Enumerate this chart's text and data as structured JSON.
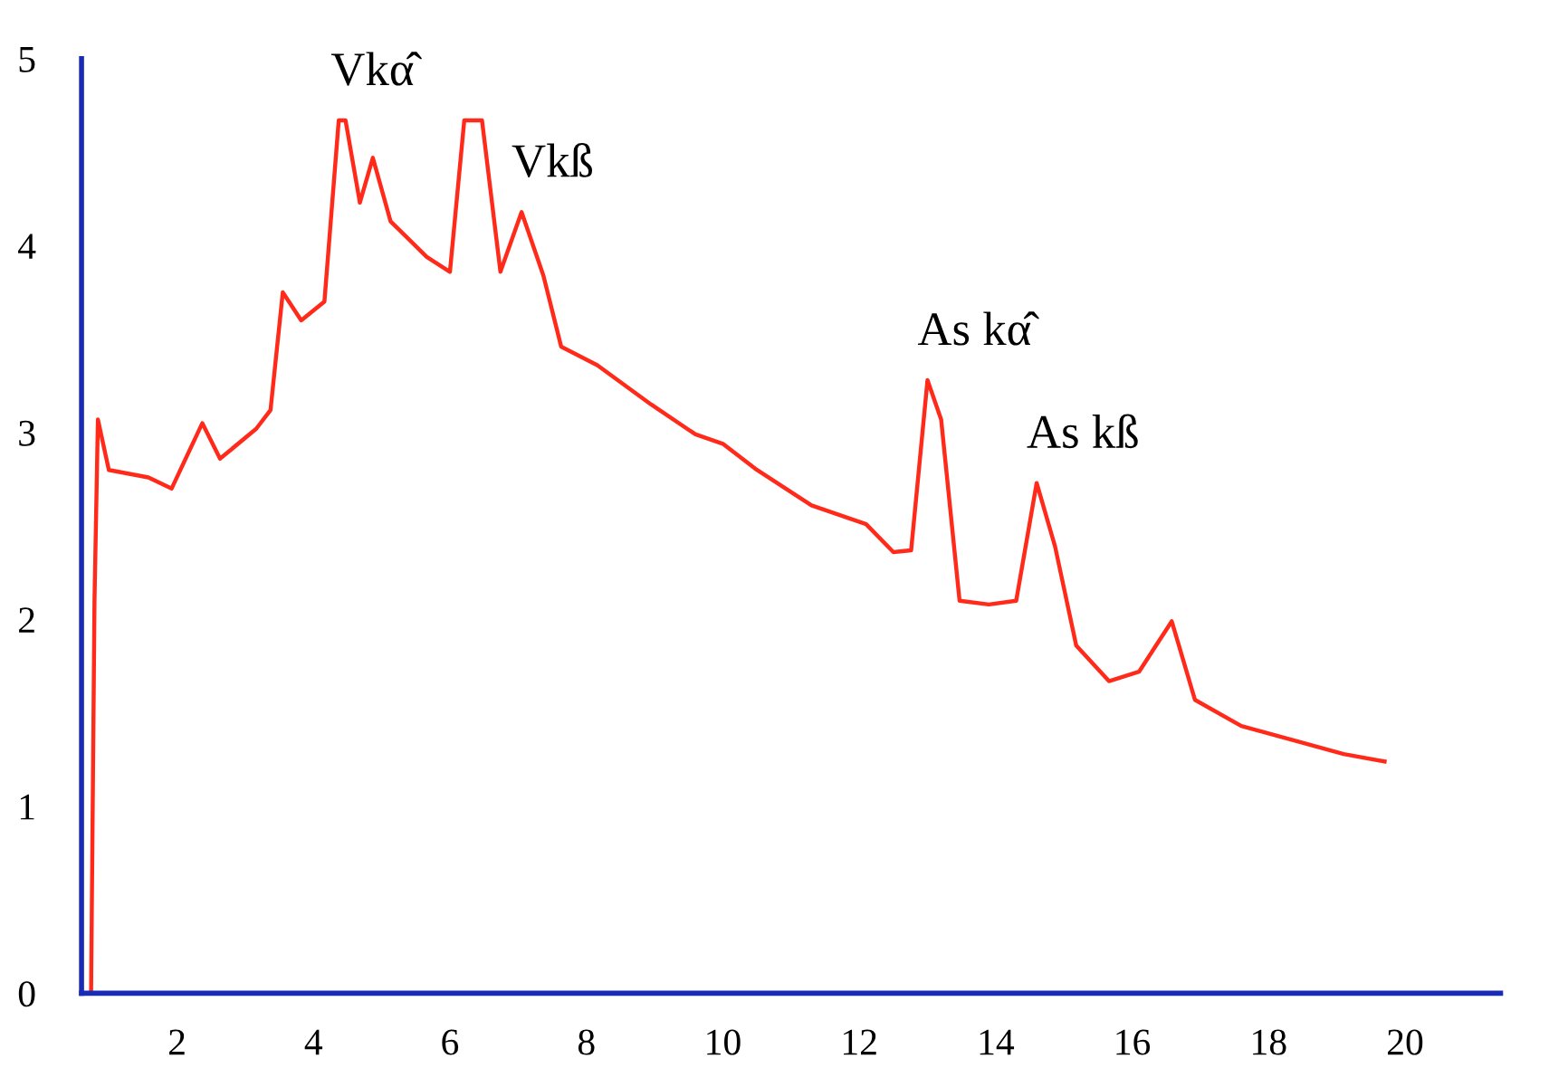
{
  "chart_data": {
    "type": "line",
    "color": "#ff2a1a",
    "x": [
      0.74,
      0.79,
      0.84,
      1.0,
      1.58,
      1.92,
      2.37,
      2.63,
      3.16,
      3.37,
      3.55,
      3.82,
      4.16,
      4.37,
      4.47,
      4.68,
      4.87,
      5.13,
      5.66,
      6.0,
      6.21,
      6.47,
      6.74,
      7.05,
      7.37,
      7.63,
      8.16,
      8.95,
      9.6,
      10.0,
      10.5,
      11.3,
      12.1,
      12.5,
      12.76,
      13.0,
      13.2,
      13.47,
      13.9,
      14.3,
      14.6,
      14.87,
      15.18,
      15.66,
      16.1,
      16.58,
      16.92,
      17.6,
      18.4,
      19.1,
      19.7
    ],
    "values": [
      0,
      2.1,
      3.07,
      2.8,
      2.76,
      2.7,
      3.05,
      2.86,
      3.02,
      3.12,
      3.75,
      3.6,
      3.7,
      4.67,
      4.67,
      4.23,
      4.47,
      4.13,
      3.94,
      3.86,
      4.67,
      4.67,
      3.86,
      4.18,
      3.84,
      3.46,
      3.36,
      3.15,
      2.99,
      2.94,
      2.8,
      2.61,
      2.51,
      2.36,
      2.37,
      3.28,
      3.07,
      2.1,
      2.08,
      2.1,
      2.73,
      2.39,
      1.86,
      1.67,
      1.72,
      1.99,
      1.57,
      1.43,
      1.35,
      1.28,
      1.24
    ],
    "xlim": [
      0.6,
      21.4
    ],
    "xticks": [
      2,
      4,
      6,
      8,
      10,
      12,
      14,
      16,
      18,
      20
    ],
    "ylim": [
      0,
      5
    ],
    "yticks": [
      0,
      1,
      2,
      3,
      4,
      5
    ],
    "grid": false,
    "legend": false,
    "marker": "none",
    "line_style": "solid",
    "annotations": [
      {
        "text": "Vkα̂",
        "x": 4.4,
        "y": 4.67
      },
      {
        "text": "Vkß",
        "x": 7.05,
        "y": 4.18
      },
      {
        "text": "As kα̂",
        "x": 13.0,
        "y": 3.28
      },
      {
        "text": "As kß",
        "x": 14.6,
        "y": 2.73
      }
    ]
  }
}
